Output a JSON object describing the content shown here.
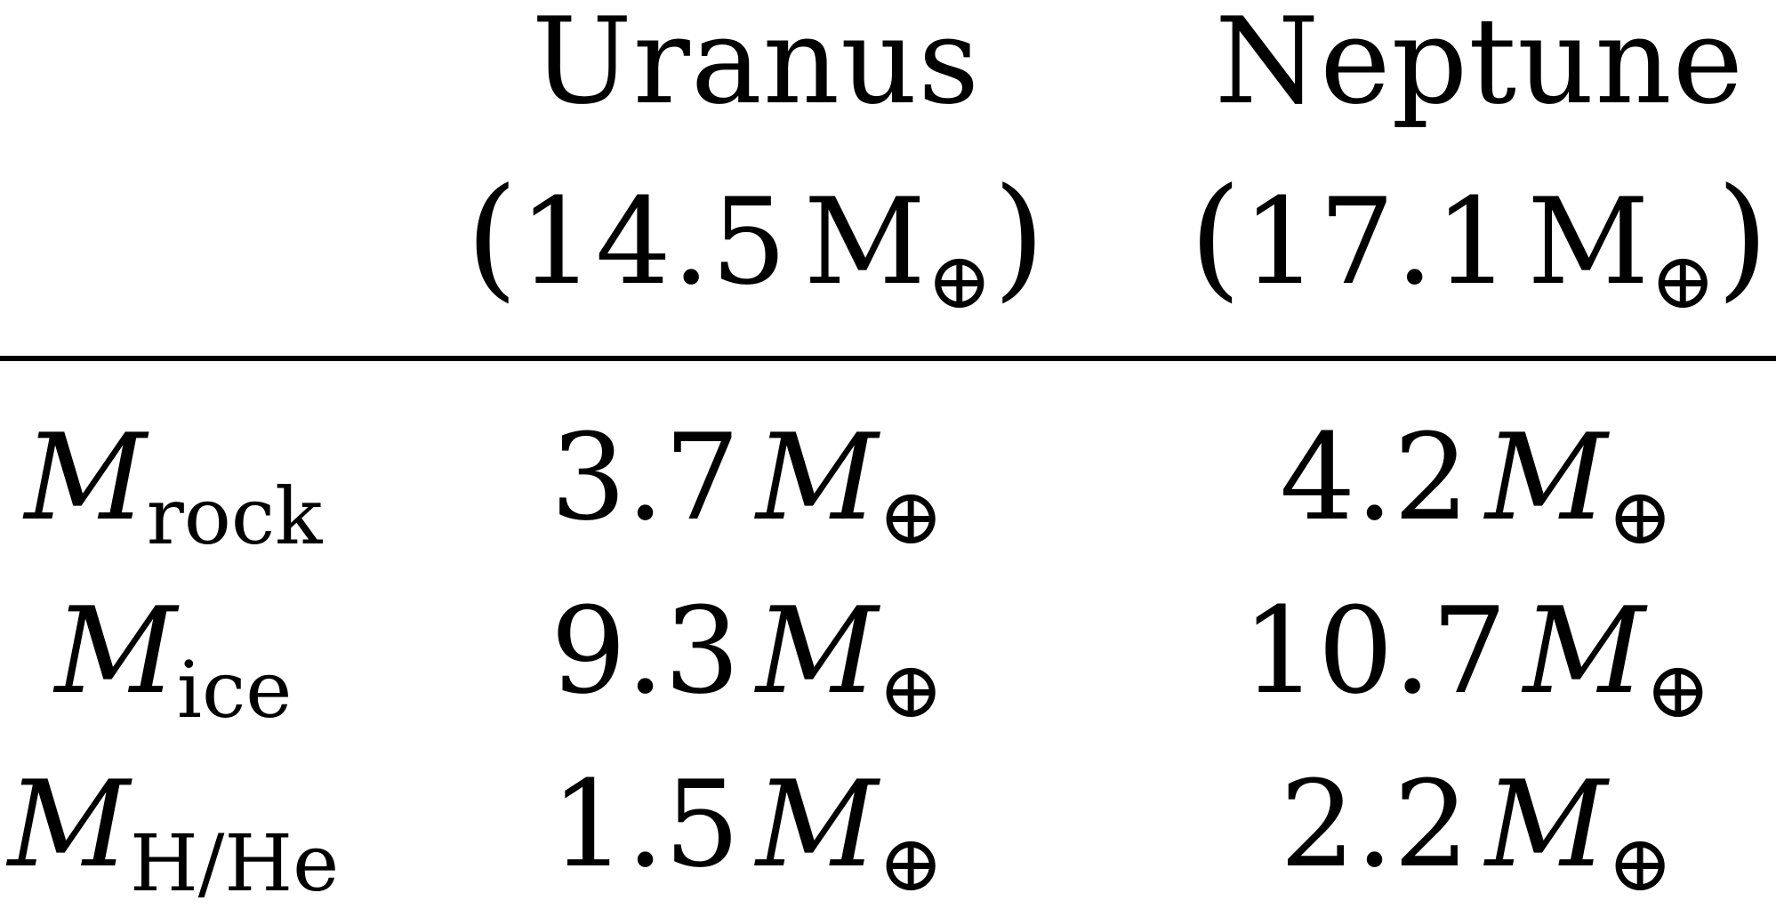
{
  "header": {
    "uranus": {
      "name": "Uranus",
      "mass_open": "(",
      "mass_value": "14.5",
      "mass_unit": "M",
      "mass_close": ")"
    },
    "neptune": {
      "name": "Neptune",
      "mass_open": "(",
      "mass_value": "17.1",
      "mass_unit": "M",
      "mass_close": ")"
    },
    "earth_symbol": "⊕"
  },
  "rows": [
    {
      "label_symbol": "M",
      "label_sub": "rock",
      "uranus_value": "3.7",
      "neptune_value": "4.2",
      "unit": "M",
      "unit_sub": "⊕"
    },
    {
      "label_symbol": "M",
      "label_sub": "ice",
      "uranus_value": "9.3",
      "neptune_value": "10.7",
      "unit": "M",
      "unit_sub": "⊕"
    },
    {
      "label_symbol": "M",
      "label_sub": "H/He",
      "uranus_value": "1.5",
      "neptune_value": "2.2",
      "unit": "M",
      "unit_sub": "⊕"
    }
  ]
}
